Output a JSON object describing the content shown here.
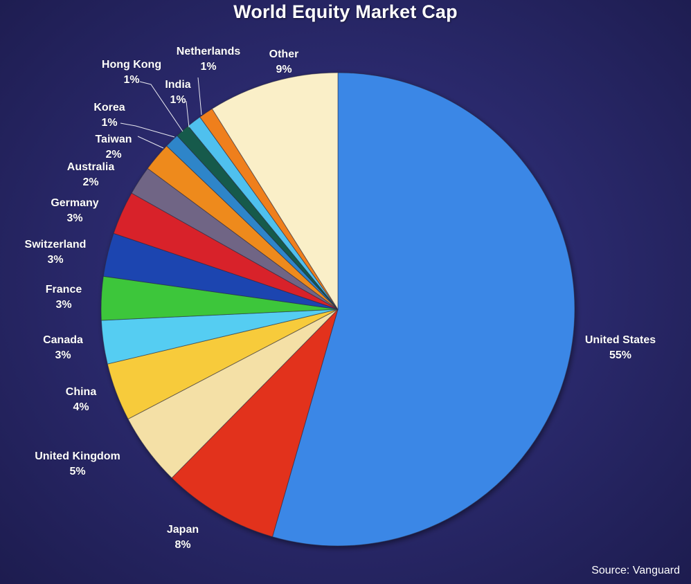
{
  "chart_data": {
    "type": "pie",
    "title": "World Equity Market Cap",
    "source": "Source: Vanguard",
    "slices": [
      {
        "label": "United States",
        "value": 55,
        "value_label": "55%",
        "color": "#3b87e6"
      },
      {
        "label": "Japan",
        "value": 8,
        "value_label": "8%",
        "color": "#e2321f"
      },
      {
        "label": "United Kingdom",
        "value": 5,
        "value_label": "5%",
        "color": "#f4e0a6"
      },
      {
        "label": "China",
        "value": 4,
        "value_label": "4%",
        "color": "#f7cb3a"
      },
      {
        "label": "Canada",
        "value": 3,
        "value_label": "3%",
        "color": "#55cdf2"
      },
      {
        "label": "France",
        "value": 3,
        "value_label": "3%",
        "color": "#3cc63a"
      },
      {
        "label": "Switzerland",
        "value": 3,
        "value_label": "3%",
        "color": "#1f44b0"
      },
      {
        "label": "Germany",
        "value": 3,
        "value_label": "3%",
        "color": "#d8242a"
      },
      {
        "label": "Australia",
        "value": 2,
        "value_label": "2%",
        "color": "#6f6585"
      },
      {
        "label": "Taiwan",
        "value": 2,
        "value_label": "2%",
        "color": "#ee8a1f"
      },
      {
        "label": "Korea",
        "value": 1,
        "value_label": "1%",
        "color": "#2e85c9"
      },
      {
        "label": "Hong Kong",
        "value": 1,
        "value_label": "1%",
        "color": "#145a4c"
      },
      {
        "label": "India",
        "value": 1,
        "value_label": "1%",
        "color": "#4fc0ee"
      },
      {
        "label": "Netherlands",
        "value": 1,
        "value_label": "1%",
        "color": "#ef7f1e"
      },
      {
        "label": "Other",
        "value": 9,
        "value_label": "9%",
        "color": "#faefc8"
      }
    ]
  }
}
